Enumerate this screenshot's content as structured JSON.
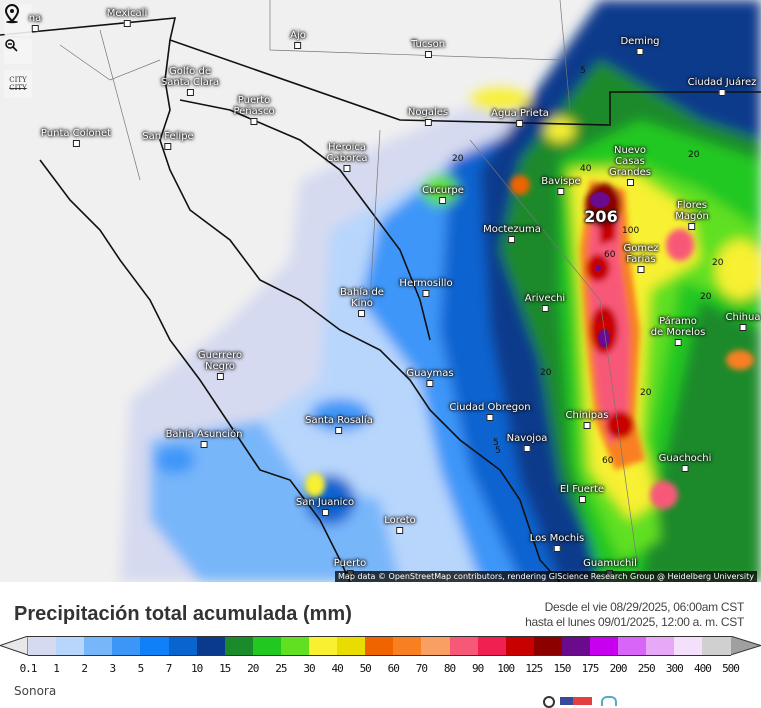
{
  "map": {
    "controls": {
      "locate": "map-pin",
      "zoom_out": "zoom-out",
      "city_toggle_label": "CITY",
      "city_toggle_label_struck": "CITY"
    },
    "cities": [
      {
        "name": "Mexicali"
      },
      {
        "name": "Ajo"
      },
      {
        "name": "Tucson"
      },
      {
        "name": "Deming"
      },
      {
        "name": "Ciudad Juárez"
      },
      {
        "name": "Golfo de Santa Clara"
      },
      {
        "name": "Puerto Peñasco"
      },
      {
        "name": "Nogales"
      },
      {
        "name": "Agua Prieta"
      },
      {
        "name": "Punta Colonet"
      },
      {
        "name": "San Felipe"
      },
      {
        "name": "Heroica Caborca"
      },
      {
        "name": "Bavispe"
      },
      {
        "name": "Nuevo Casas Grandes"
      },
      {
        "name": "Cucurpe"
      },
      {
        "name": "Flores Magón"
      },
      {
        "name": "Moctezuma"
      },
      {
        "name": "Gomez Farías"
      },
      {
        "name": "Hermosillo"
      },
      {
        "name": "Arivechi"
      },
      {
        "name": "Bahía de Kino"
      },
      {
        "name": "Chihua"
      },
      {
        "name": "Páramo de Morelos"
      },
      {
        "name": "Guerrero Negro"
      },
      {
        "name": "Guaymas"
      },
      {
        "name": "Ciudad Obregon"
      },
      {
        "name": "Santa Rosalía"
      },
      {
        "name": "Chinipas"
      },
      {
        "name": "Bahía Asunción"
      },
      {
        "name": "Navojoa"
      },
      {
        "name": "Guachochi"
      },
      {
        "name": "El Fuerte"
      },
      {
        "name": "San Juanico"
      },
      {
        "name": "Loreto"
      },
      {
        "name": "Los Mochis"
      },
      {
        "name": "Guamuchil"
      },
      {
        "name": "Puerto"
      },
      {
        "name": "na"
      }
    ],
    "max_value": "206",
    "contours": [
      "20",
      "5",
      "20",
      "40",
      "100",
      "60",
      "20",
      "20",
      "20",
      "5",
      "60",
      "20",
      "5"
    ],
    "attribution": "Map data © OpenStreetMap contributors, rendering GIScience Research Group @ Heidelberg University"
  },
  "header": {
    "title": "Precipitación total acumulada (mm)",
    "from": "Desde el vie 08/29/2025, 06:00am CST",
    "to": "hasta el lunes 09/01/2025, 12:00 a. m. CST"
  },
  "legend": {
    "labels": [
      "0.1",
      "1",
      "2",
      "3",
      "5",
      "7",
      "10",
      "15",
      "20",
      "25",
      "30",
      "40",
      "50",
      "60",
      "70",
      "80",
      "90",
      "100",
      "125",
      "150",
      "175",
      "200",
      "250",
      "300",
      "400",
      "500"
    ],
    "colors": [
      "#d6daf0",
      "#b8d6fc",
      "#78b6fa",
      "#3c96f8",
      "#1080f8",
      "#0a64d0",
      "#0a3a8c",
      "#1a8a2a",
      "#20c820",
      "#60e020",
      "#f8f030",
      "#e8dc00",
      "#f06400",
      "#f88020",
      "#f8a064",
      "#f85878",
      "#f02050",
      "#c80000",
      "#8c0000",
      "#6a0a8c",
      "#c800f0",
      "#d864f8",
      "#e8a8f8",
      "#f4e0fa",
      "#d0d0d0"
    ],
    "below_color": "#e8e8e8",
    "above_color": "#a0a0a0"
  },
  "footer": {
    "region": "Sonora"
  }
}
